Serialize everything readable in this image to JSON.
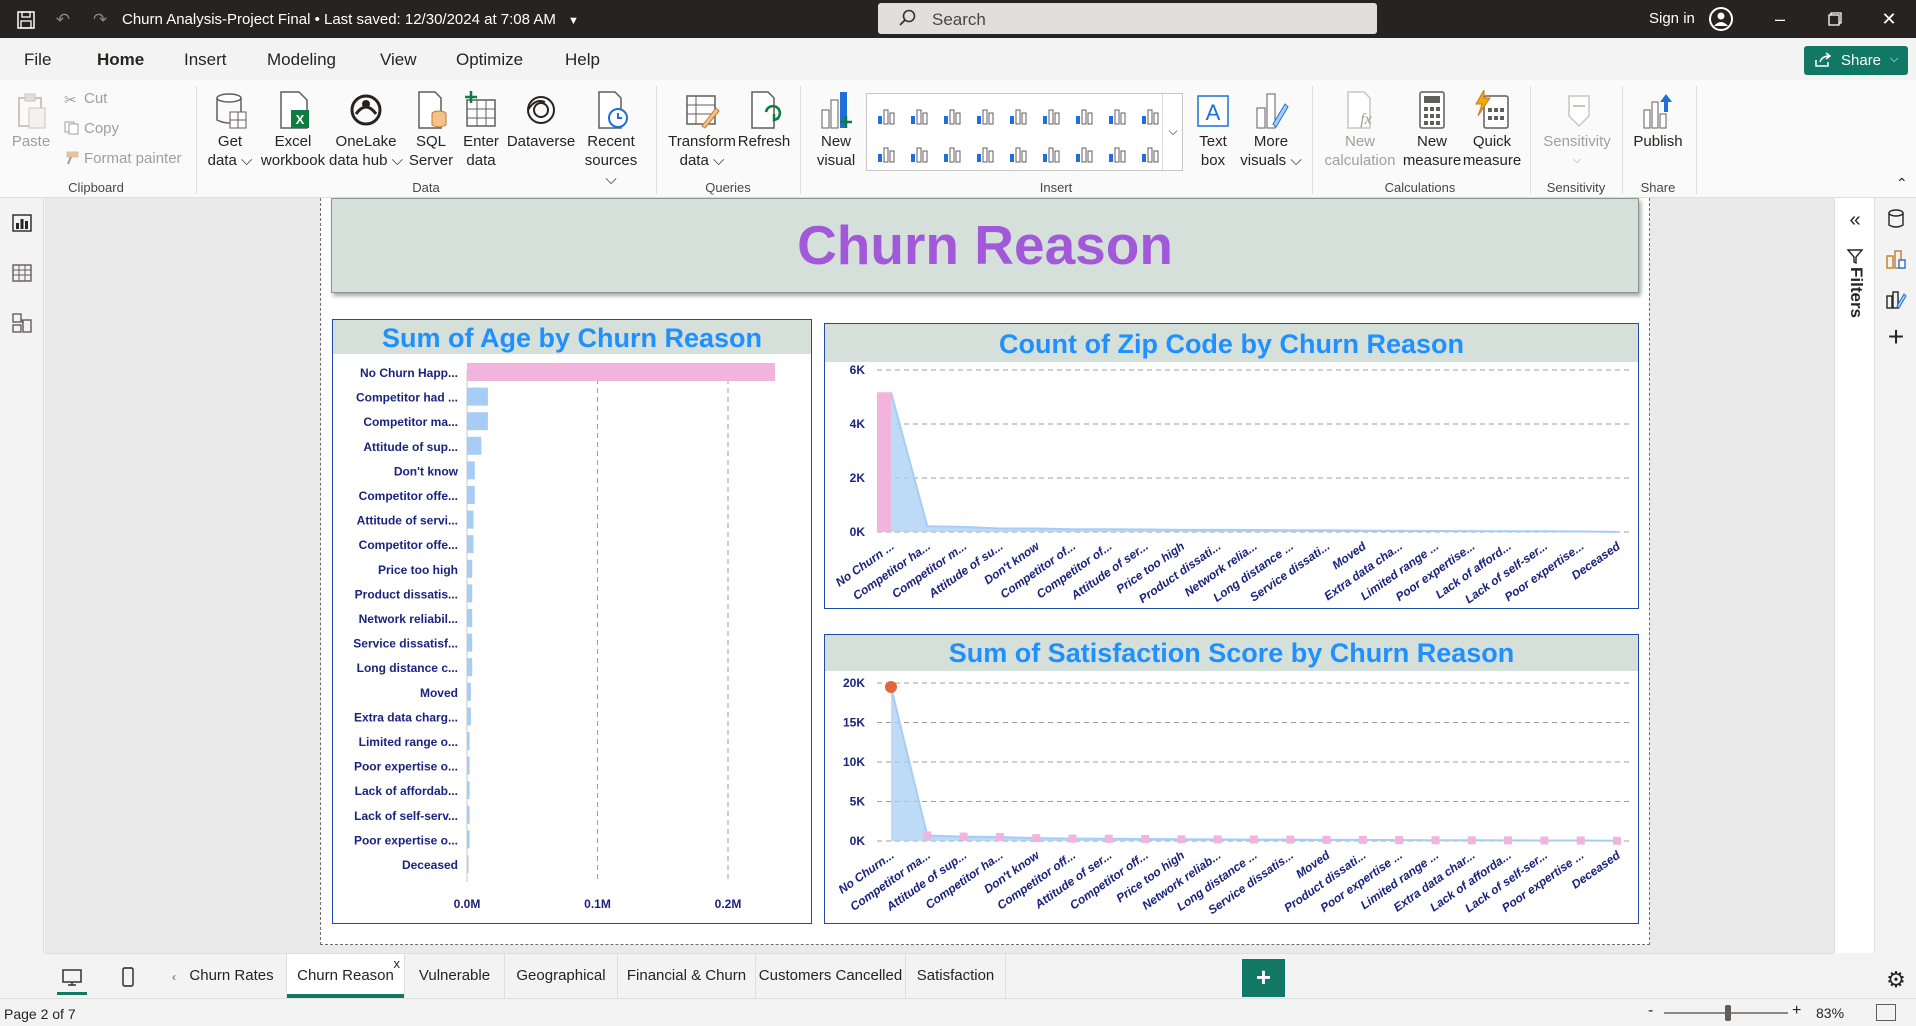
{
  "titlebar": {
    "doc_title": "Churn Analysis-Project Final • Last saved: 12/30/2024 at 7:08 AM",
    "search_placeholder": "Search",
    "signin": "Sign in"
  },
  "menu": {
    "tabs": [
      "File",
      "Home",
      "Insert",
      "Modeling",
      "View",
      "Optimize",
      "Help"
    ],
    "active": "Home",
    "share": "Share"
  },
  "ribbon": {
    "clipboard": {
      "paste": "Paste",
      "cut": "Cut",
      "copy": "Copy",
      "format_painter": "Format painter",
      "group": "Clipboard"
    },
    "data": {
      "get_data": "Get data ⌵",
      "excel": "Excel workbook",
      "onelake": "OneLake data hub ⌵",
      "sql": "SQL Server",
      "enter": "Enter data",
      "dataverse": "Dataverse",
      "recent": "Recent sources ⌵",
      "group": "Data"
    },
    "queries": {
      "transform": "Transform data ⌵",
      "refresh": "Refresh",
      "group": "Queries"
    },
    "insert": {
      "new_visual": "New visual",
      "text_box": "Text box",
      "more_visuals": "More visuals ⌵",
      "group": "Insert"
    },
    "calculations": {
      "new_calc": "New calculation",
      "new_measure": "New measure",
      "quick_measure": "Quick measure",
      "group": "Calculations"
    },
    "sensitivity": {
      "label": "Sensitivity",
      "group": "Sensitivity"
    },
    "share": {
      "publish": "Publish",
      "group": "Share"
    }
  },
  "report": {
    "banner_title": "Churn Reason",
    "filters_label": "Filters"
  },
  "colors": {
    "accent": "#117865",
    "title_purple": "#a259d9",
    "visual_title_blue": "#1e90ff",
    "bar_blue": "#a7cdf4",
    "highlight_pink": "#f2b3dc",
    "label_navy": "#1a237e",
    "marker_orange": "#e0683a"
  },
  "chart_data": [
    {
      "type": "bar",
      "orientation": "horizontal",
      "title": "Sum of Age by Churn Reason",
      "categories": [
        "No Churn Happ...",
        "Competitor had ...",
        "Competitor ma...",
        "Attitude of sup...",
        "Don't know",
        "Competitor offe...",
        "Attitude of servi...",
        "Competitor offe...",
        "Price too high",
        "Product dissatis...",
        "Network reliabil...",
        "Service dissatisf...",
        "Long distance c...",
        "Moved",
        "Extra data charg...",
        "Limited range o...",
        "Poor expertise o...",
        "Lack of affordab...",
        "Lack of self-serv...",
        "Poor expertise o...",
        "Deceased"
      ],
      "values": [
        0.236,
        0.016,
        0.016,
        0.011,
        0.006,
        0.006,
        0.005,
        0.005,
        0.004,
        0.004,
        0.004,
        0.004,
        0.004,
        0.003,
        0.003,
        0.002,
        0.002,
        0.002,
        0.002,
        0.002,
        0.001
      ],
      "value_unit": "M",
      "xticks": [
        "0.0M",
        "0.1M",
        "0.2M"
      ],
      "xlim": [
        0,
        0.3
      ],
      "highlight_index": 0,
      "grid": true
    },
    {
      "type": "area",
      "title": "Count of Zip Code by Churn Reason",
      "categories": [
        "No Churn ...",
        "Competitor ha...",
        "Competitor m...",
        "Attitude of su...",
        "Don't know",
        "Competitor of...",
        "Competitor of...",
        "Attitude of ser...",
        "Price too high",
        "Product dissati...",
        "Network relia...",
        "Long distance ...",
        "Service dissati...",
        "Moved",
        "Extra data cha...",
        "Limited range ...",
        "Poor expertise...",
        "Lack of afford...",
        "Lack of self-ser...",
        "Poor expertise...",
        "Deceased"
      ],
      "values": [
        5174,
        211,
        189,
        130,
        130,
        100,
        100,
        94,
        78,
        77,
        72,
        64,
        63,
        53,
        43,
        37,
        31,
        30,
        29,
        20,
        6
      ],
      "yticks": [
        "6K",
        "4K",
        "2K",
        "0K"
      ],
      "ylim": [
        0,
        6000
      ],
      "highlight_index": 0,
      "grid": true
    },
    {
      "type": "area",
      "title": "Sum of Satisfaction Score by Churn Reason",
      "categories": [
        "No Churn...",
        "Competitor ma...",
        "Attitude of sup...",
        "Competitor ha...",
        "Don't know",
        "Competitor off...",
        "Attitude of ser...",
        "Competitor off...",
        "Price too high",
        "Network reliab...",
        "Long distance ...",
        "Service dissatis...",
        "Moved",
        "Product dissati...",
        "Poor expertise ...",
        "Limited range ...",
        "Extra data char...",
        "Lack of afforda...",
        "Lack of self-ser...",
        "Poor expertise ...",
        "Deceased"
      ],
      "values": [
        19500,
        700,
        560,
        500,
        360,
        300,
        280,
        250,
        220,
        200,
        180,
        170,
        150,
        140,
        110,
        100,
        90,
        80,
        70,
        60,
        30
      ],
      "yticks": [
        "20K",
        "15K",
        "10K",
        "5K",
        "0K"
      ],
      "ylim": [
        0,
        20000
      ],
      "highlight_index": 0,
      "grid": true
    }
  ],
  "tabs": {
    "pages": [
      "Churn Rates",
      "Churn Reason",
      "Vulnerable",
      "Geographical",
      "Financial & Churn",
      "Customers Cancelled",
      "Satisfaction"
    ],
    "active": "Churn Reason",
    "close": "x",
    "add": "+"
  },
  "status": {
    "page": "Page 2 of 7",
    "zoom": "83%",
    "zoom_minus": "-",
    "zoom_plus": "+",
    "zoom_value": 0.83
  }
}
